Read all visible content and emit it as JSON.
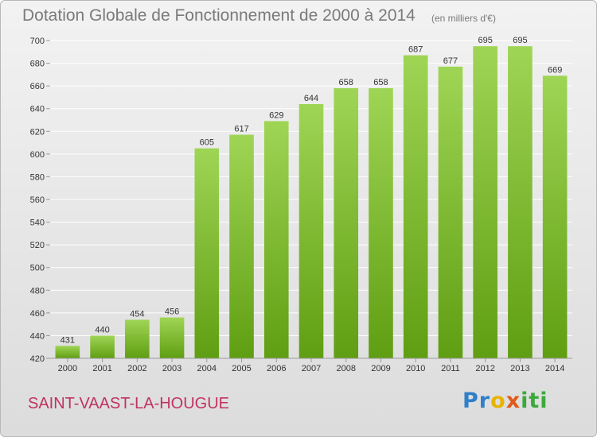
{
  "header": {
    "title": "Dotation Globale de Fonctionnement de 2000 à 2014",
    "unit": "(en milliers d'€)"
  },
  "footer": {
    "commune": "SAINT-VAAST-LA-HOUGUE",
    "logo_letters": [
      {
        "ch": "P",
        "color": "#2f80c8"
      },
      {
        "ch": "r",
        "color": "#2f80c8"
      },
      {
        "ch": "o",
        "color": "#e8b400"
      },
      {
        "ch": "x",
        "color": "#e05a1a"
      },
      {
        "ch": "i",
        "color": "#3aaa3a"
      },
      {
        "ch": "t",
        "color": "#3aaa3a"
      },
      {
        "ch": "i",
        "color": "#3aaa3a"
      }
    ]
  },
  "colors": {
    "bar_light": "#9fd555",
    "bar_dark": "#5f9e12",
    "grid": "#ffffff",
    "axis": "#9a9a9a"
  },
  "chart_data": {
    "type": "bar",
    "title": "Dotation Globale de Fonctionnement de 2000 à 2014",
    "subtitle": "(en milliers d'€)",
    "xlabel": "",
    "ylabel": "",
    "categories": [
      "2000",
      "2001",
      "2002",
      "2003",
      "2004",
      "2005",
      "2006",
      "2007",
      "2008",
      "2009",
      "2010",
      "2011",
      "2012",
      "2013",
      "2014"
    ],
    "values": [
      431,
      440,
      454,
      456,
      605,
      617,
      629,
      644,
      658,
      658,
      687,
      677,
      695,
      695,
      669
    ],
    "ylim": [
      420,
      700
    ],
    "yticks": [
      420,
      440,
      460,
      480,
      500,
      520,
      540,
      560,
      580,
      600,
      620,
      640,
      660,
      680,
      700
    ],
    "grid": true,
    "legend": "none"
  }
}
